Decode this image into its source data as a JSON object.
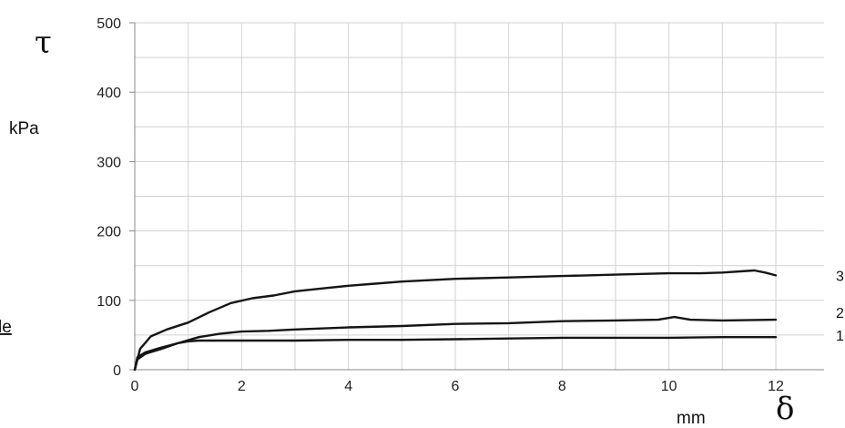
{
  "chart_data": {
    "type": "line",
    "title": "",
    "y_symbol": "τ",
    "y_unit": "kPa",
    "x_symbol": "δ",
    "x_unit": "mm",
    "xlim": [
      0,
      12
    ],
    "ylim": [
      0,
      500
    ],
    "x_ticks": [
      "0",
      "2",
      "4",
      "6",
      "8",
      "10",
      "12"
    ],
    "y_ticks": [
      "0",
      "100",
      "200",
      "300",
      "400",
      "500"
    ],
    "grid": true,
    "left_cropped_text": "le",
    "series": [
      {
        "name": "1",
        "points": [
          [
            0,
            0
          ],
          [
            0.05,
            18
          ],
          [
            0.2,
            25
          ],
          [
            0.5,
            32
          ],
          [
            0.8,
            38
          ],
          [
            1.0,
            41
          ],
          [
            1.2,
            42
          ],
          [
            1.5,
            42
          ],
          [
            2,
            42
          ],
          [
            3,
            42
          ],
          [
            4,
            43
          ],
          [
            5,
            43
          ],
          [
            6,
            44
          ],
          [
            7,
            45
          ],
          [
            8,
            46
          ],
          [
            9,
            46
          ],
          [
            10,
            46
          ],
          [
            11,
            47
          ],
          [
            12,
            47
          ]
        ]
      },
      {
        "name": "2",
        "points": [
          [
            0,
            0
          ],
          [
            0.05,
            15
          ],
          [
            0.2,
            23
          ],
          [
            0.5,
            30
          ],
          [
            0.8,
            38
          ],
          [
            1.2,
            47
          ],
          [
            1.6,
            52
          ],
          [
            2,
            55
          ],
          [
            2.5,
            56
          ],
          [
            3,
            58
          ],
          [
            4,
            61
          ],
          [
            5,
            63
          ],
          [
            6,
            66
          ],
          [
            7,
            67
          ],
          [
            8,
            70
          ],
          [
            9,
            71
          ],
          [
            9.8,
            72
          ],
          [
            10.1,
            76
          ],
          [
            10.4,
            72
          ],
          [
            11,
            71
          ],
          [
            12,
            72
          ]
        ]
      },
      {
        "name": "3",
        "points": [
          [
            0,
            0
          ],
          [
            0.1,
            30
          ],
          [
            0.3,
            48
          ],
          [
            0.6,
            58
          ],
          [
            1.0,
            68
          ],
          [
            1.4,
            83
          ],
          [
            1.8,
            96
          ],
          [
            2.2,
            103
          ],
          [
            2.6,
            107
          ],
          [
            3,
            113
          ],
          [
            3.5,
            117
          ],
          [
            4,
            121
          ],
          [
            4.5,
            124
          ],
          [
            5,
            127
          ],
          [
            5.5,
            129
          ],
          [
            6,
            131
          ],
          [
            7,
            133
          ],
          [
            8,
            135
          ],
          [
            9,
            137
          ],
          [
            10,
            139
          ],
          [
            10.6,
            139
          ],
          [
            11,
            140
          ],
          [
            11.6,
            143
          ],
          [
            11.8,
            140
          ],
          [
            12,
            136
          ]
        ]
      }
    ]
  }
}
